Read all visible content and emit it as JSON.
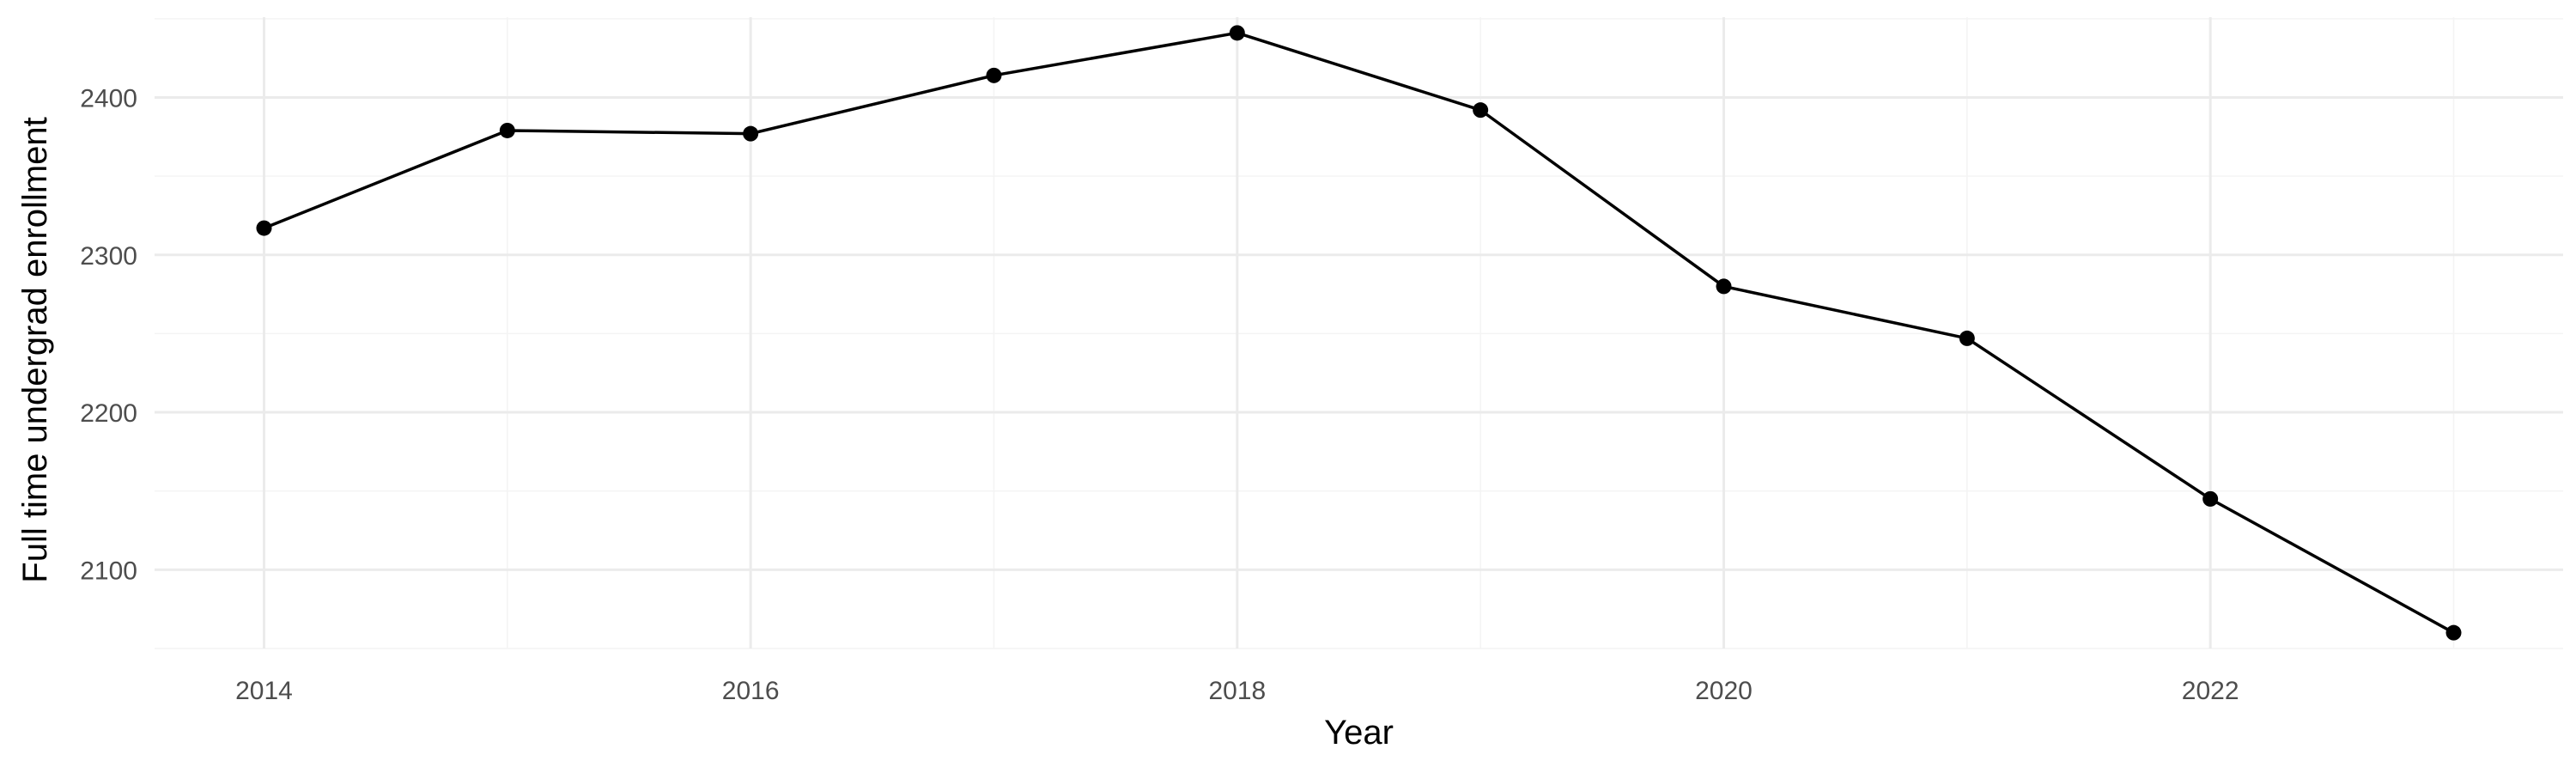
{
  "chart_data": {
    "type": "line",
    "title": "",
    "xlabel": "Year",
    "ylabel": "Full time undergrad enrollment",
    "x": [
      2014,
      2015,
      2016,
      2017,
      2018,
      2019,
      2020,
      2021,
      2022,
      2023
    ],
    "series": [
      {
        "values": [
          2317,
          2379,
          2377,
          2414,
          2441,
          2392,
          2280,
          2247,
          2145,
          2060
        ]
      }
    ],
    "xlim": [
      2013.55,
      2023.45
    ],
    "ylim": [
      2050,
      2451
    ],
    "x_ticks": [
      2014,
      2016,
      2018,
      2020,
      2022
    ],
    "x_tick_labels": [
      "2014",
      "2016",
      "2018",
      "2020",
      "2022"
    ],
    "y_ticks": [
      2100,
      2200,
      2300,
      2400
    ],
    "y_tick_labels": [
      "2100",
      "2200",
      "2300",
      "2400"
    ],
    "grid": true,
    "legend": "none",
    "colors": {
      "line": "#000000",
      "point": "#000000",
      "grid_major": "#ebebeb",
      "grid_minor": "#f4f4f4",
      "tick_label": "#4d4d4d"
    }
  }
}
